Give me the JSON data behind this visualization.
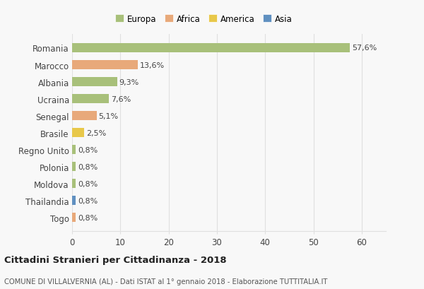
{
  "countries": [
    "Romania",
    "Marocco",
    "Albania",
    "Ucraina",
    "Senegal",
    "Brasile",
    "Regno Unito",
    "Polonia",
    "Moldova",
    "Thailandia",
    "Togo"
  ],
  "values": [
    57.6,
    13.6,
    9.3,
    7.6,
    5.1,
    2.5,
    0.8,
    0.8,
    0.8,
    0.8,
    0.8
  ],
  "labels": [
    "57,6%",
    "13,6%",
    "9,3%",
    "7,6%",
    "5,1%",
    "2,5%",
    "0,8%",
    "0,8%",
    "0,8%",
    "0,8%",
    "0,8%"
  ],
  "colors": [
    "#a8c07a",
    "#e8a97a",
    "#a8c07a",
    "#a8c07a",
    "#e8a97a",
    "#e8c84a",
    "#a8c07a",
    "#a8c07a",
    "#a8c07a",
    "#6090c0",
    "#e8a97a"
  ],
  "legend_labels": [
    "Europa",
    "Africa",
    "America",
    "Asia"
  ],
  "legend_colors": [
    "#a8c07a",
    "#e8a97a",
    "#e8c84a",
    "#6090c0"
  ],
  "xlim": [
    0,
    65
  ],
  "xticks": [
    0,
    10,
    20,
    30,
    40,
    50,
    60
  ],
  "title": "Cittadini Stranieri per Cittadinanza - 2018",
  "subtitle": "COMUNE DI VILLALVERNIA (AL) - Dati ISTAT al 1° gennaio 2018 - Elaborazione TUTTITALIA.IT",
  "bg_color": "#f8f8f8",
  "grid_color": "#e0e0e0"
}
